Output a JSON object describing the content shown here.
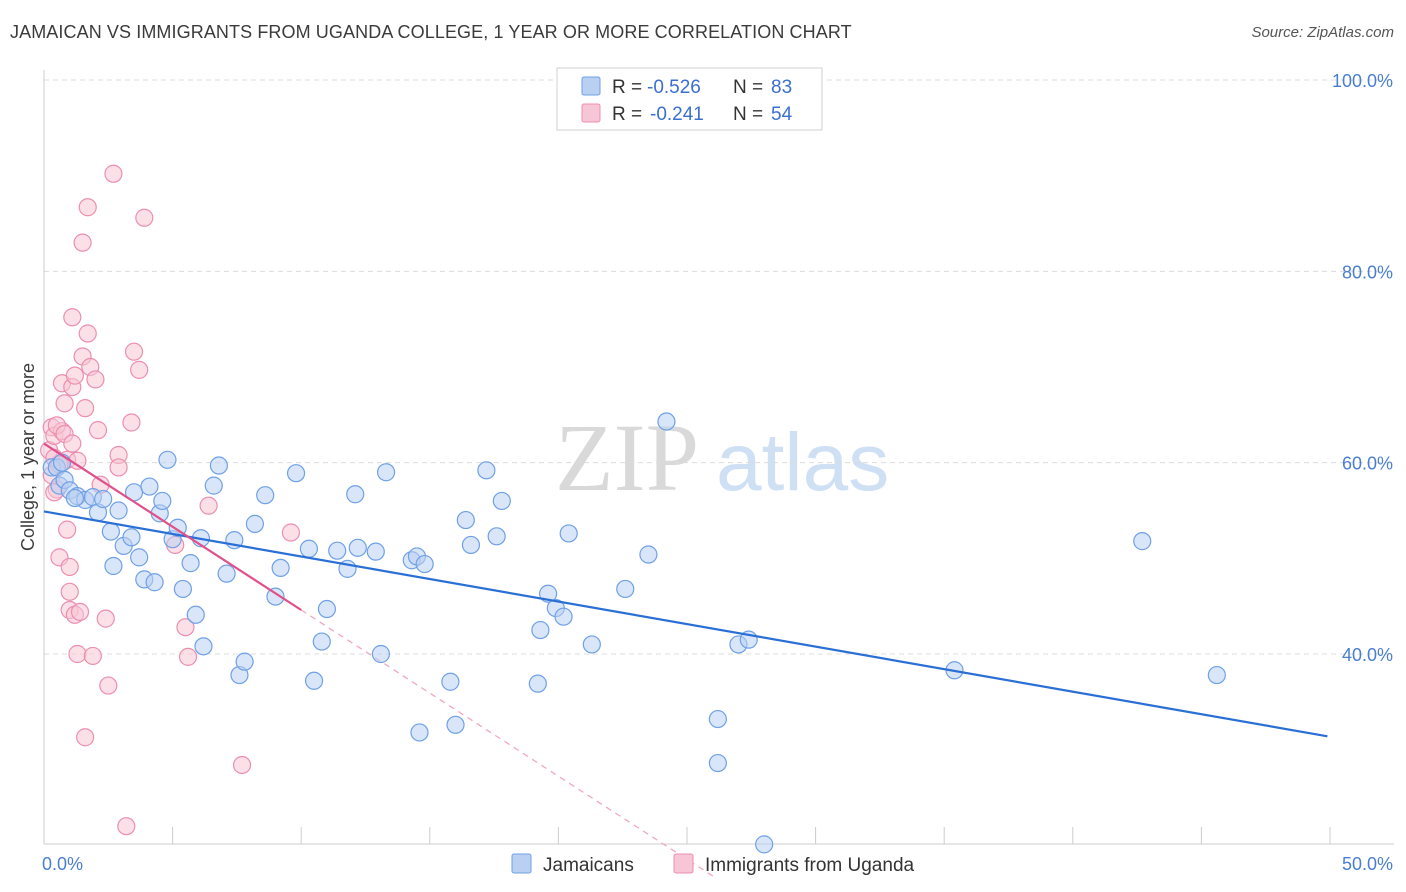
{
  "header": {
    "title": "JAMAICAN VS IMMIGRANTS FROM UGANDA COLLEGE, 1 YEAR OR MORE CORRELATION CHART",
    "source": "Source: ZipAtlas.com"
  },
  "watermark": {
    "zip": "ZIP",
    "atlas": "atlas"
  },
  "chart_data": {
    "type": "scatter",
    "title": "JAMAICAN VS IMMIGRANTS FROM UGANDA COLLEGE, 1 YEAR OR MORE CORRELATION CHART",
    "xlabel": "",
    "ylabel": "College, 1 year or more",
    "xlim": [
      0,
      50
    ],
    "ylim": [
      20,
      102
    ],
    "x_tick_labels": [
      {
        "value": 0,
        "label": "0.0%"
      },
      {
        "value": 50,
        "label": "50.0%"
      }
    ],
    "y_tick_labels": [
      {
        "value": 100,
        "label": "100.0%"
      },
      {
        "value": 80,
        "label": "80.0%"
      },
      {
        "value": 60,
        "label": "60.0%"
      },
      {
        "value": 40,
        "label": "40.0%"
      }
    ],
    "grid": true,
    "legend_stats": [
      {
        "r_label": "R =",
        "r_value": "-0.526",
        "n_label": "N =",
        "n_value": "83"
      },
      {
        "r_label": "R =",
        "r_value": "-0.241",
        "n_label": "N =",
        "n_value": "54"
      }
    ],
    "series": [
      {
        "name": "Jamaicans",
        "color": "#6fa1e6",
        "fill": "#b9d0f3",
        "trend_color": "#2a6fd6",
        "trend": {
          "x": [
            0,
            49.9
          ],
          "y": [
            54.9,
            31.4
          ]
        },
        "points": [
          [
            0.3,
            59.5
          ],
          [
            0.5,
            59.5
          ],
          [
            0.6,
            57.6
          ],
          [
            0.8,
            58.2
          ],
          [
            1.0,
            57.1
          ],
          [
            1.3,
            56.5
          ],
          [
            1.6,
            56.1
          ],
          [
            1.9,
            56.4
          ],
          [
            2.1,
            54.8
          ],
          [
            2.3,
            56.2
          ],
          [
            2.6,
            52.8
          ],
          [
            2.7,
            49.2
          ],
          [
            2.9,
            55.0
          ],
          [
            3.1,
            51.3
          ],
          [
            3.4,
            52.2
          ],
          [
            3.5,
            56.9
          ],
          [
            3.7,
            50.1
          ],
          [
            3.9,
            47.8
          ],
          [
            4.1,
            57.5
          ],
          [
            4.3,
            47.5
          ],
          [
            4.5,
            54.7
          ],
          [
            4.6,
            56.0
          ],
          [
            4.8,
            60.3
          ],
          [
            5.0,
            52.0
          ],
          [
            5.2,
            53.2
          ],
          [
            5.4,
            46.8
          ],
          [
            5.7,
            49.5
          ],
          [
            5.9,
            44.1
          ],
          [
            6.1,
            52.1
          ],
          [
            6.2,
            40.8
          ],
          [
            6.6,
            57.6
          ],
          [
            6.8,
            59.7
          ],
          [
            7.1,
            48.4
          ],
          [
            7.4,
            51.9
          ],
          [
            7.6,
            37.8
          ],
          [
            7.8,
            39.2
          ],
          [
            8.2,
            53.6
          ],
          [
            8.6,
            56.6
          ],
          [
            9.0,
            46.0
          ],
          [
            9.2,
            49.0
          ],
          [
            9.8,
            58.9
          ],
          [
            10.3,
            51.0
          ],
          [
            10.5,
            37.2
          ],
          [
            10.8,
            41.3
          ],
          [
            11.0,
            44.7
          ],
          [
            11.4,
            50.8
          ],
          [
            11.8,
            48.9
          ],
          [
            12.1,
            56.7
          ],
          [
            12.2,
            51.1
          ],
          [
            12.9,
            50.7
          ],
          [
            13.1,
            40.0
          ],
          [
            13.3,
            59.0
          ],
          [
            14.3,
            49.8
          ],
          [
            14.5,
            50.2
          ],
          [
            14.6,
            31.8
          ],
          [
            14.8,
            49.4
          ],
          [
            15.8,
            37.1
          ],
          [
            16.0,
            32.6
          ],
          [
            16.4,
            54.0
          ],
          [
            16.6,
            51.4
          ],
          [
            17.2,
            59.2
          ],
          [
            17.6,
            52.3
          ],
          [
            17.8,
            56.0
          ],
          [
            19.2,
            36.9
          ],
          [
            19.3,
            42.5
          ],
          [
            19.6,
            46.3
          ],
          [
            19.9,
            44.8
          ],
          [
            20.2,
            43.9
          ],
          [
            20.4,
            52.6
          ],
          [
            21.3,
            41.0
          ],
          [
            22.6,
            46.8
          ],
          [
            23.5,
            50.4
          ],
          [
            24.2,
            64.3
          ],
          [
            26.2,
            33.2
          ],
          [
            26.2,
            28.6
          ],
          [
            27.0,
            41.0
          ],
          [
            27.4,
            41.5
          ],
          [
            28.0,
            20.1
          ],
          [
            35.4,
            38.3
          ],
          [
            42.7,
            51.8
          ],
          [
            45.6,
            37.8
          ],
          [
            0.7,
            60.0
          ],
          [
            1.2,
            56.3
          ]
        ]
      },
      {
        "name": "Immigrants from Uganda",
        "color": "#ec8fb0",
        "fill": "#f7c6d6",
        "trend_color": "#e0508a",
        "trend": {
          "x": [
            0,
            10.0
          ],
          "y": [
            62.0,
            44.6
          ]
        },
        "trend_ext": {
          "x": [
            10.0,
            26.0
          ],
          "y": [
            44.6,
            16.8
          ]
        },
        "points": [
          [
            0.2,
            61.3
          ],
          [
            0.3,
            63.7
          ],
          [
            0.4,
            62.8
          ],
          [
            0.4,
            60.5
          ],
          [
            0.5,
            57.2
          ],
          [
            0.6,
            50.1
          ],
          [
            0.7,
            68.3
          ],
          [
            0.7,
            63.3
          ],
          [
            0.8,
            66.2
          ],
          [
            0.9,
            60.3
          ],
          [
            0.9,
            53.0
          ],
          [
            1.0,
            49.1
          ],
          [
            1.0,
            46.5
          ],
          [
            1.0,
            44.6
          ],
          [
            1.1,
            67.9
          ],
          [
            1.1,
            75.2
          ],
          [
            1.2,
            69.1
          ],
          [
            1.2,
            44.1
          ],
          [
            1.3,
            60.2
          ],
          [
            1.3,
            40.0
          ],
          [
            1.4,
            44.4
          ],
          [
            1.5,
            71.1
          ],
          [
            1.5,
            83.0
          ],
          [
            1.6,
            65.7
          ],
          [
            1.6,
            31.3
          ],
          [
            1.7,
            86.7
          ],
          [
            1.7,
            73.5
          ],
          [
            1.8,
            70.0
          ],
          [
            1.9,
            39.8
          ],
          [
            2.0,
            68.7
          ],
          [
            2.1,
            63.4
          ],
          [
            2.4,
            43.7
          ],
          [
            2.5,
            36.7
          ],
          [
            2.7,
            90.2
          ],
          [
            2.9,
            60.8
          ],
          [
            2.9,
            59.5
          ],
          [
            3.2,
            22.0
          ],
          [
            3.4,
            64.2
          ],
          [
            3.5,
            71.6
          ],
          [
            3.7,
            69.7
          ],
          [
            3.9,
            85.6
          ],
          [
            5.1,
            51.4
          ],
          [
            5.5,
            42.8
          ],
          [
            5.6,
            39.7
          ],
          [
            6.4,
            55.5
          ],
          [
            7.7,
            28.4
          ],
          [
            9.6,
            52.7
          ],
          [
            0.3,
            58.7
          ],
          [
            0.5,
            63.9
          ],
          [
            0.8,
            63.0
          ],
          [
            0.4,
            56.9
          ],
          [
            2.2,
            57.7
          ],
          [
            1.1,
            62.0
          ],
          [
            0.6,
            59.8
          ]
        ]
      }
    ]
  }
}
